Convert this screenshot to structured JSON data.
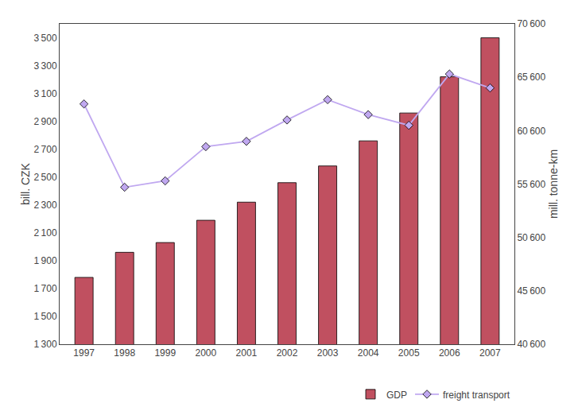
{
  "chart_data": {
    "type": "bar",
    "categories": [
      "1997",
      "1998",
      "1999",
      "2000",
      "2001",
      "2002",
      "2003",
      "2004",
      "2005",
      "2006",
      "2007"
    ],
    "series": [
      {
        "name": "GDP",
        "type": "bar",
        "color": "#c05060",
        "values": [
          1780,
          1960,
          2030,
          2190,
          2320,
          2460,
          2580,
          2760,
          2960,
          3220,
          3500
        ]
      },
      {
        "name": "freight transport",
        "type": "line",
        "axis": "y2",
        "color": "#c0a8f0",
        "marker": "diamond",
        "line_style": "solid",
        "values": [
          63100,
          55300,
          55900,
          59100,
          59600,
          61600,
          63500,
          62100,
          61100,
          65900,
          64600
        ]
      }
    ],
    "ylabel": "bill. CZK",
    "y2label": "mill. tonne-km",
    "ylim": [
      1300,
      3600
    ],
    "yticks": [
      {
        "value": 1300,
        "label": "1 300"
      },
      {
        "value": 1500,
        "label": "1 500"
      },
      {
        "value": 1700,
        "label": "1 700"
      },
      {
        "value": 1900,
        "label": "1 900"
      },
      {
        "value": 2100,
        "label": "2 100"
      },
      {
        "value": 2300,
        "label": "2 300"
      },
      {
        "value": 2500,
        "label": "2 500"
      },
      {
        "value": 2700,
        "label": "2 700"
      },
      {
        "value": 2900,
        "label": "2 900"
      },
      {
        "value": 3100,
        "label": "3 100"
      },
      {
        "value": 3300,
        "label": "3 300"
      },
      {
        "value": 3500,
        "label": "3 500"
      }
    ],
    "y2lim": [
      40600,
      70600
    ],
    "y2ticks": [
      {
        "value": 40600,
        "label": "40 600"
      },
      {
        "value": 45600,
        "label": "45 600"
      },
      {
        "value": 50600,
        "label": "50 600"
      },
      {
        "value": 55600,
        "label": "55 600"
      },
      {
        "value": 60600,
        "label": "60 600"
      },
      {
        "value": 65600,
        "label": "65 600"
      },
      {
        "value": 70600,
        "label": "70 600"
      }
    ],
    "grid": false,
    "legend": "lower right"
  }
}
